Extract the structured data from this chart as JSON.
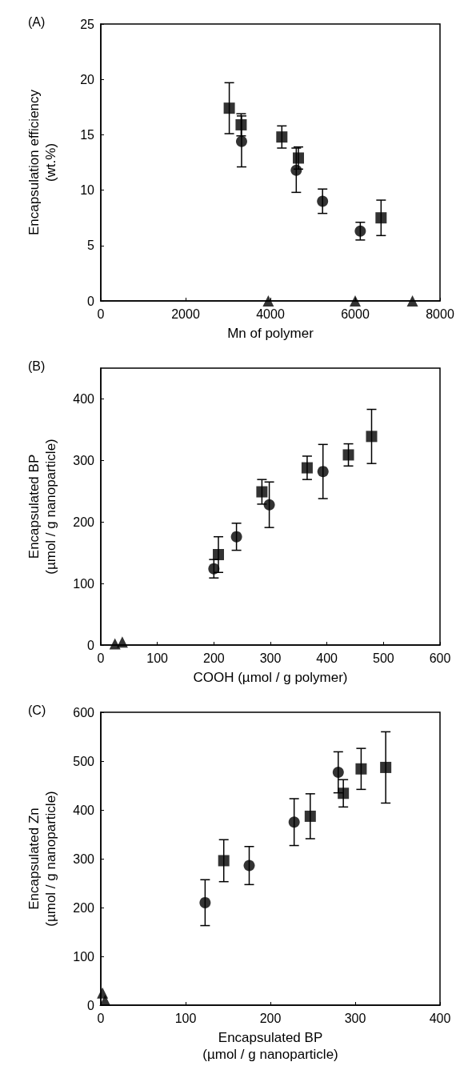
{
  "chart_data": [
    {
      "type": "scatter",
      "title": "(A)",
      "xlabel": "Mn of polymer",
      "ylabel": "Encapsulation efficiency\n(wt.%)",
      "xlim": [
        0,
        8000
      ],
      "xticks": [
        0,
        2000,
        4000,
        6000,
        8000
      ],
      "ylim": [
        0,
        25
      ],
      "yticks": [
        0,
        5,
        10,
        15,
        20,
        25
      ],
      "grid": false,
      "series": [
        {
          "color": "#000000",
          "marker": "square",
          "x": [
            3030,
            3310,
            4270,
            4660,
            6610
          ],
          "values": [
            17.4,
            15.9,
            14.8,
            12.9,
            7.5
          ],
          "errors": [
            2.3,
            1.0,
            1.0,
            1.0,
            1.6
          ]
        },
        {
          "color": "#000000",
          "marker": "circle",
          "x": [
            3320,
            4610,
            5230,
            6120
          ],
          "values": [
            14.4,
            11.8,
            9.0,
            6.3
          ],
          "errors": [
            2.3,
            2.0,
            1.1,
            0.8
          ]
        },
        {
          "color": "#000000",
          "marker": "triangle",
          "x": [
            3950,
            6000,
            7350
          ],
          "values": [
            0,
            0,
            0
          ]
        }
      ]
    },
    {
      "type": "scatter",
      "title": "(B)",
      "xlabel": "COOH (µmol / g polymer)",
      "ylabel": "Encapsulated BP\n(µmol / g nanoparticle)",
      "xlim": [
        0,
        600
      ],
      "xticks": [
        0,
        100,
        200,
        300,
        400,
        500,
        600
      ],
      "ylim": [
        0,
        450
      ],
      "yticks": [
        0,
        100,
        200,
        300,
        400
      ],
      "grid": false,
      "series": [
        {
          "color": "#000000",
          "marker": "square",
          "x": [
            208,
            285,
            365,
            438,
            479
          ],
          "values": [
            147,
            249,
            288,
            309,
            339
          ],
          "errors": [
            29,
            20,
            19,
            18,
            44
          ]
        },
        {
          "color": "#000000",
          "marker": "circle",
          "x": [
            200,
            240,
            298,
            393
          ],
          "values": [
            124,
            176,
            228,
            282
          ],
          "errors": [
            15,
            22,
            37,
            44
          ]
        },
        {
          "color": "#000000",
          "marker": "triangle",
          "x": [
            25,
            38
          ],
          "values": [
            2,
            5
          ]
        }
      ]
    },
    {
      "type": "scatter",
      "title": "(C)",
      "xlabel": "Encapsulated BP\n(µmol / g nanoparticle)",
      "ylabel": "Encapsulated Zn\n(µmol / g nanoparticle)",
      "xlim": [
        0,
        400
      ],
      "xticks": [
        0,
        100,
        200,
        300,
        400
      ],
      "ylim": [
        0,
        600
      ],
      "yticks": [
        0,
        100,
        200,
        300,
        400,
        500,
        600
      ],
      "grid": false,
      "series": [
        {
          "color": "#000000",
          "marker": "square",
          "x": [
            145,
            247,
            286,
            307,
            336
          ],
          "values": [
            296,
            387,
            434,
            484,
            487
          ],
          "errors": [
            43,
            46,
            28,
            42,
            73
          ]
        },
        {
          "color": "#000000",
          "marker": "circle",
          "x": [
            123,
            175,
            228,
            280
          ],
          "values": [
            210,
            286,
            375,
            477
          ],
          "errors": [
            47,
            39,
            48,
            42
          ]
        },
        {
          "color": "#000000",
          "marker": "triangle",
          "x": [
            2,
            5
          ],
          "values": [
            25,
            10
          ]
        }
      ]
    }
  ]
}
